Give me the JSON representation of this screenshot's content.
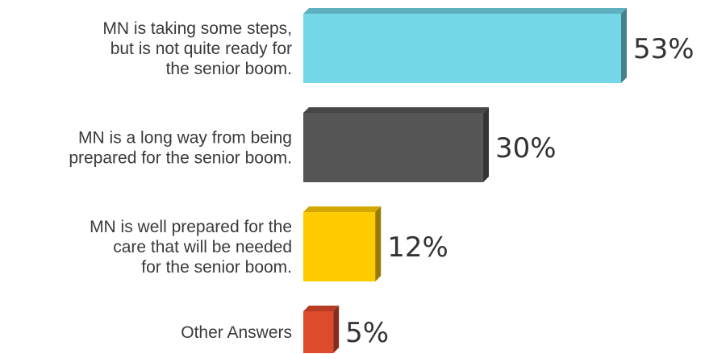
{
  "chart_data": {
    "type": "bar",
    "orientation": "horizontal",
    "categories": [
      [
        "MN is taking some steps,",
        "but is not quite ready for",
        "the senior boom."
      ],
      [
        "MN is a long way from being",
        "prepared for the senior boom."
      ],
      [
        "MN is well prepared for the",
        "care that will be needed",
        "for the senior boom."
      ],
      [
        "Other Answers"
      ]
    ],
    "values": [
      53,
      30,
      12,
      5
    ],
    "value_labels": [
      "53%",
      "30%",
      "12%",
      "5%"
    ],
    "colors": [
      "#74D7E8",
      "#565656",
      "#FFCC00",
      "#DE4B2C"
    ],
    "xlim": [
      0,
      53
    ],
    "grid": false,
    "legend": "none"
  }
}
